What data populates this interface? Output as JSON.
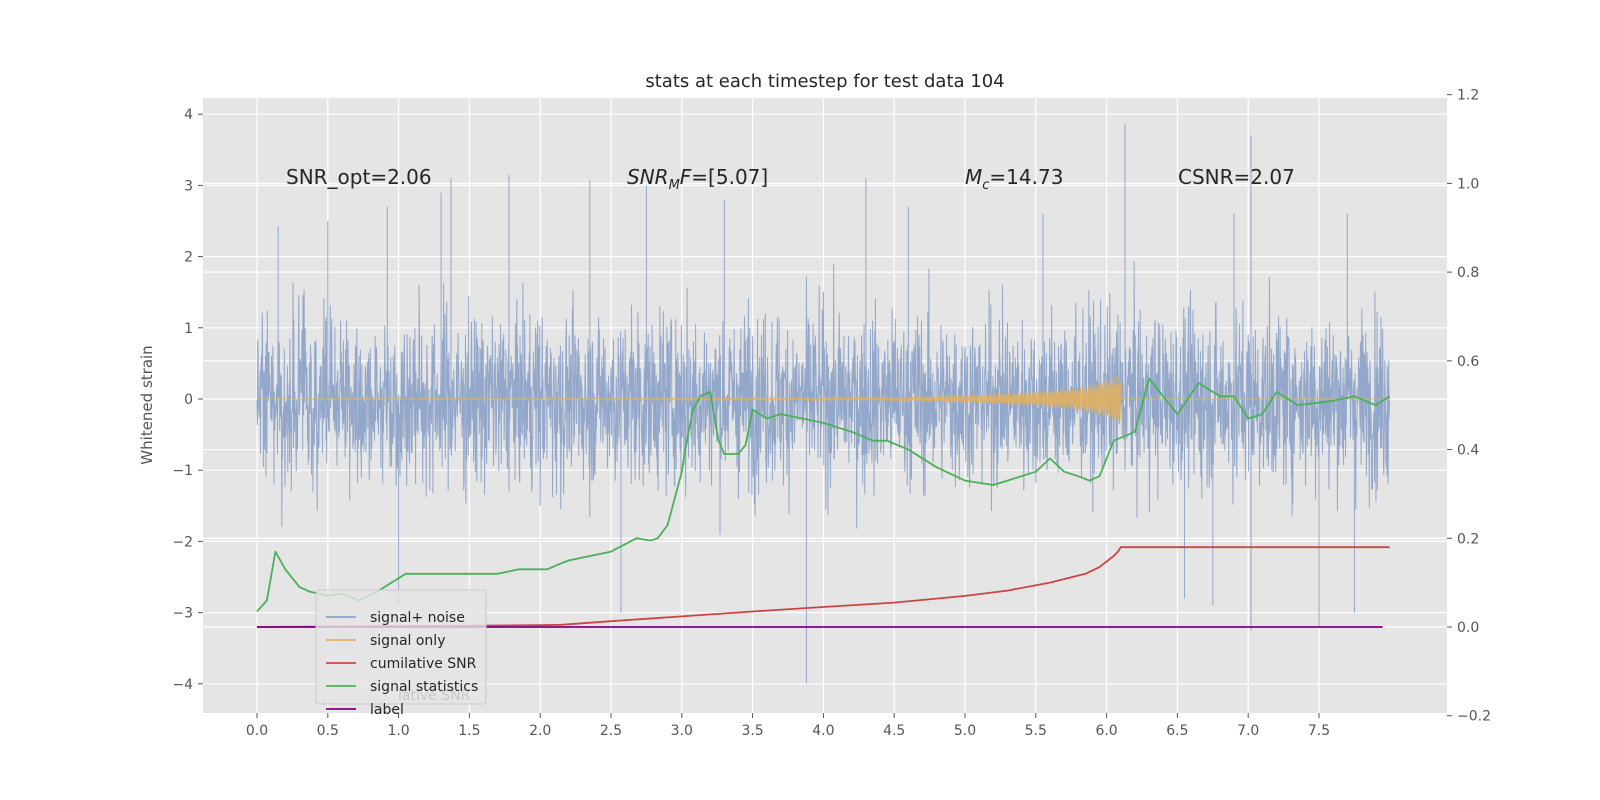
{
  "chart_data": {
    "type": "line",
    "title": "stats at each timestep for test data 104",
    "ylabel": "Whitened strain",
    "xlabel": "",
    "xlim": [
      -0.4,
      8.35
    ],
    "ylim": [
      -4.4,
      4.25
    ],
    "y2lim": [
      -0.2,
      1.2
    ],
    "xticks": [
      "0.0",
      "0.5",
      "1.0",
      "1.5",
      "2.0",
      "2.5",
      "3.0",
      "3.5",
      "4.0",
      "4.5",
      "5.0",
      "5.5",
      "6.0",
      "6.5",
      "7.0",
      "7.5"
    ],
    "yticks": [
      "4",
      "3",
      "2",
      "1",
      "0",
      "−1",
      "−2",
      "−3",
      "−4"
    ],
    "y2ticks": [
      "1.2",
      "1.0",
      "0.8",
      "0.6",
      "0.4",
      "0.2",
      "0.0",
      "−0.2"
    ],
    "grid": true,
    "annotations": {
      "snr_opt": "SNR_opt=2.06",
      "snr_mf": "=[5.07]",
      "mc": "=14.73",
      "csnr": "CSNR=2.07"
    },
    "legend": {
      "placement": "lower-left",
      "entries": [
        "signal+ noise",
        "signal only",
        "cumilative SNR",
        "signal statistics",
        "label"
      ],
      "ghost": "lative SNR"
    },
    "colors": {
      "noise": "#8ea3c9",
      "signal": "#e0b060",
      "cumulative": "#cc4444",
      "statistics": "#4caf5a",
      "label": "#800080",
      "background": "#e5e5e5"
    },
    "series": [
      {
        "name": "signal+ noise",
        "axis": "left",
        "description": "noisy whitened strain between about -2.6 and 2.6, spikes to 3.87 at 6.13, 3.7 at 7.02, -4.0 at 3.88, -3.25 at 7.02",
        "spikes": [
          [
            0.15,
            2.42
          ],
          [
            0.5,
            2.5
          ],
          [
            0.92,
            2.7
          ],
          [
            1.3,
            2.9
          ],
          [
            1.37,
            3.1
          ],
          [
            1.78,
            3.15
          ],
          [
            2.35,
            3.07
          ],
          [
            2.75,
            3.0
          ],
          [
            3.3,
            2.8
          ],
          [
            4.3,
            3.1
          ],
          [
            4.6,
            2.7
          ],
          [
            5.55,
            2.6
          ],
          [
            6.13,
            3.87
          ],
          [
            6.9,
            2.6
          ],
          [
            7.02,
            3.7
          ],
          [
            7.7,
            2.6
          ],
          [
            3.88,
            -4.0
          ],
          [
            2.57,
            -3.0
          ],
          [
            1.0,
            -2.9
          ],
          [
            6.55,
            -2.8
          ],
          [
            7.02,
            -3.25
          ],
          [
            7.5,
            -3.2
          ],
          [
            7.75,
            -3.0
          ],
          [
            6.75,
            -2.9
          ]
        ]
      },
      {
        "name": "signal only",
        "axis": "left",
        "description": "chirp growing in amplitude, reaching about ±0.35 near 6.05 then ending at 6.1",
        "envelope": [
          [
            4.5,
            0.02
          ],
          [
            5.0,
            0.05
          ],
          [
            5.5,
            0.1
          ],
          [
            5.8,
            0.16
          ],
          [
            6.0,
            0.26
          ],
          [
            6.1,
            0.35
          ]
        ]
      },
      {
        "name": "cumilative SNR",
        "axis": "right",
        "x": [
          0.0,
          1.0,
          2.0,
          2.15,
          2.5,
          3.0,
          3.5,
          4.0,
          4.5,
          5.0,
          5.3,
          5.6,
          5.85,
          5.95,
          6.05,
          6.08,
          6.1,
          8.0
        ],
        "y": [
          0.0,
          0.002,
          0.004,
          0.005,
          0.013,
          0.024,
          0.035,
          0.045,
          0.055,
          0.07,
          0.082,
          0.1,
          0.12,
          0.135,
          0.16,
          0.17,
          0.18,
          0.18
        ]
      },
      {
        "name": "signal statistics",
        "axis": "right",
        "x": [
          0.0,
          0.07,
          0.13,
          0.2,
          0.3,
          0.37,
          0.5,
          0.6,
          0.72,
          0.85,
          0.95,
          1.0,
          1.05,
          1.3,
          1.7,
          1.85,
          2.05,
          2.12,
          2.2,
          2.5,
          2.68,
          2.78,
          2.83,
          2.9,
          3.0,
          3.03,
          3.08,
          3.13,
          3.2,
          3.26,
          3.3,
          3.35,
          3.4,
          3.45,
          3.5,
          3.6,
          3.7,
          3.85,
          4.0,
          4.2,
          4.35,
          4.45,
          4.6,
          4.8,
          5.0,
          5.2,
          5.3,
          5.5,
          5.6,
          5.7,
          5.8,
          5.88,
          5.95,
          6.05,
          6.2,
          6.3,
          6.5,
          6.65,
          6.8,
          6.9,
          7.0,
          7.1,
          7.2,
          7.35,
          7.6,
          7.75,
          7.9,
          8.0
        ],
        "y": [
          0.035,
          0.06,
          0.17,
          0.13,
          0.09,
          0.08,
          0.07,
          0.075,
          0.06,
          0.08,
          0.1,
          0.11,
          0.12,
          0.12,
          0.12,
          0.13,
          0.13,
          0.14,
          0.15,
          0.17,
          0.2,
          0.195,
          0.2,
          0.23,
          0.35,
          0.41,
          0.49,
          0.52,
          0.53,
          0.42,
          0.39,
          0.39,
          0.39,
          0.41,
          0.49,
          0.47,
          0.48,
          0.47,
          0.46,
          0.44,
          0.42,
          0.42,
          0.4,
          0.36,
          0.33,
          0.32,
          0.33,
          0.35,
          0.38,
          0.35,
          0.34,
          0.33,
          0.34,
          0.42,
          0.44,
          0.56,
          0.48,
          0.55,
          0.52,
          0.52,
          0.47,
          0.48,
          0.53,
          0.5,
          0.51,
          0.52,
          0.5,
          0.52
        ]
      },
      {
        "name": "label",
        "axis": "right",
        "x": [
          0.0,
          7.95
        ],
        "y": [
          0.0,
          0.0
        ]
      }
    ]
  }
}
